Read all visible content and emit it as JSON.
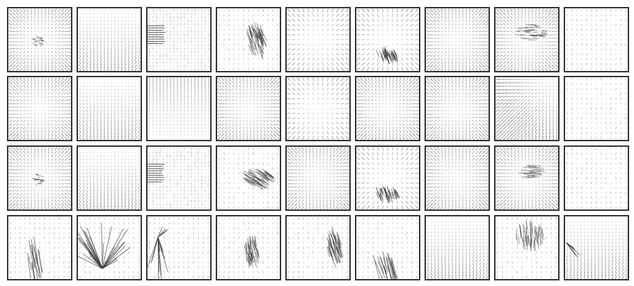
{
  "figure": {
    "rows": 4,
    "cols": 9,
    "line_color": "#3a3a3a",
    "border_color": "#333333",
    "background": "#ffffff"
  },
  "panels": [
    {
      "row": 0,
      "col": 0,
      "pattern": "radial-center-blob"
    },
    {
      "row": 0,
      "col": 1,
      "pattern": "field-bottom-heavy"
    },
    {
      "row": 0,
      "col": 2,
      "pattern": "horizontal-left-strokes"
    },
    {
      "row": 0,
      "col": 3,
      "pattern": "cluster-diagonal"
    },
    {
      "row": 0,
      "col": 4,
      "pattern": "radial-sparse"
    },
    {
      "row": 0,
      "col": 5,
      "pattern": "cluster-bottom"
    },
    {
      "row": 0,
      "col": 6,
      "pattern": "radial-dense"
    },
    {
      "row": 0,
      "col": 7,
      "pattern": "cluster-top-right"
    },
    {
      "row": 0,
      "col": 8,
      "pattern": "field-sparse"
    },
    {
      "row": 1,
      "col": 0,
      "pattern": "radial-dense"
    },
    {
      "row": 1,
      "col": 1,
      "pattern": "field-dense"
    },
    {
      "row": 1,
      "col": 2,
      "pattern": "field-top-vertical"
    },
    {
      "row": 1,
      "col": 3,
      "pattern": "radial-dense"
    },
    {
      "row": 1,
      "col": 4,
      "pattern": "radial-sparse"
    },
    {
      "row": 1,
      "col": 5,
      "pattern": "radial-dense"
    },
    {
      "row": 1,
      "col": 6,
      "pattern": "radial-dense"
    },
    {
      "row": 1,
      "col": 7,
      "pattern": "radial-corner"
    },
    {
      "row": 1,
      "col": 8,
      "pattern": "field-sparse"
    },
    {
      "row": 2,
      "col": 0,
      "pattern": "radial-center-blob"
    },
    {
      "row": 2,
      "col": 1,
      "pattern": "field-bottom-heavy"
    },
    {
      "row": 2,
      "col": 2,
      "pattern": "horizontal-left-strokes"
    },
    {
      "row": 2,
      "col": 3,
      "pattern": "cluster-diagonal-shallow"
    },
    {
      "row": 2,
      "col": 4,
      "pattern": "radial-dense"
    },
    {
      "row": 2,
      "col": 5,
      "pattern": "cluster-bottom"
    },
    {
      "row": 2,
      "col": 6,
      "pattern": "radial-dense"
    },
    {
      "row": 2,
      "col": 7,
      "pattern": "cluster-center-horizontal"
    },
    {
      "row": 2,
      "col": 8,
      "pattern": "field-sparse"
    },
    {
      "row": 3,
      "col": 0,
      "pattern": "long-strokes-bottom-left"
    },
    {
      "row": 3,
      "col": 1,
      "pattern": "fan-burst"
    },
    {
      "row": 3,
      "col": 2,
      "pattern": "fan-left-vertical"
    },
    {
      "row": 3,
      "col": 3,
      "pattern": "cluster-center"
    },
    {
      "row": 3,
      "col": 4,
      "pattern": "cluster-right"
    },
    {
      "row": 3,
      "col": 5,
      "pattern": "long-strokes-bottom"
    },
    {
      "row": 3,
      "col": 6,
      "pattern": "field-dense"
    },
    {
      "row": 3,
      "col": 7,
      "pattern": "cluster-top-vertical"
    },
    {
      "row": 3,
      "col": 8,
      "pattern": "field-left-spike"
    }
  ]
}
